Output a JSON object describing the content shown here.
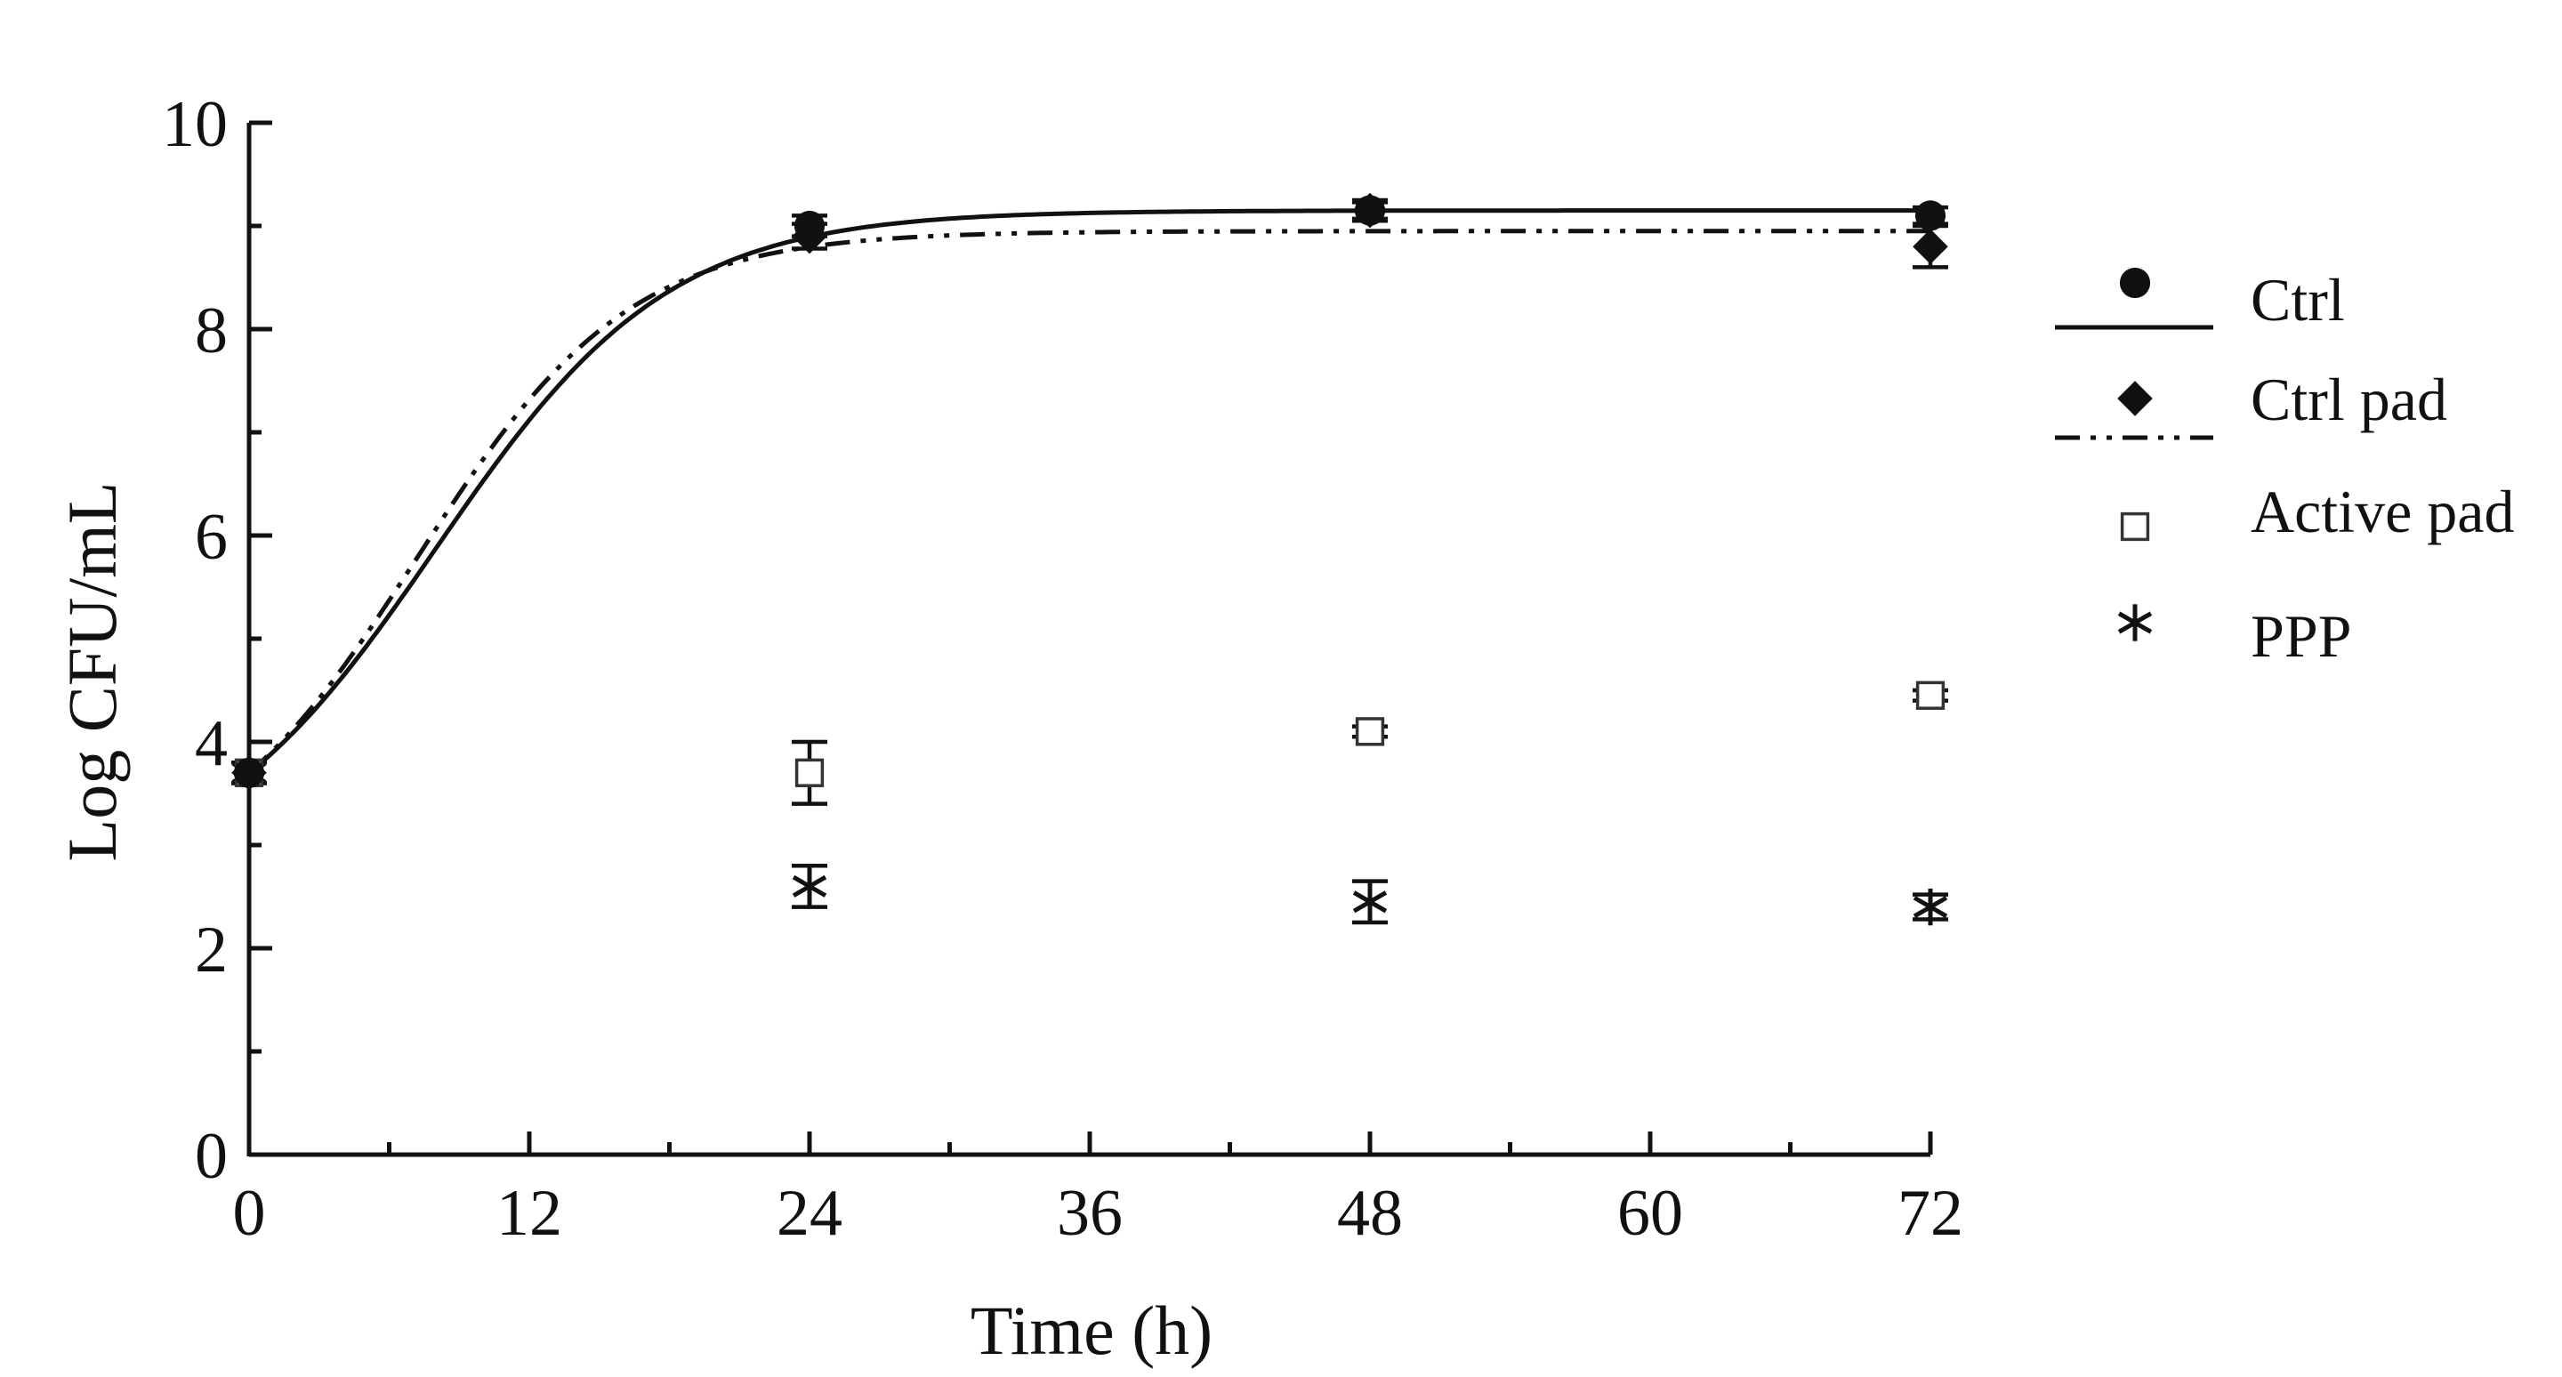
{
  "chart_data": {
    "type": "scatter",
    "title": "",
    "xlabel": "Time (h)",
    "ylabel": "Log CFU/mL",
    "xlim": [
      0,
      72
    ],
    "ylim": [
      0,
      10
    ],
    "xticks": [
      0,
      12,
      24,
      36,
      48,
      60,
      72
    ],
    "yticks": [
      0,
      2,
      4,
      6,
      8,
      10
    ],
    "grid": false,
    "legend_position": "right",
    "series": [
      {
        "name": "Ctrl",
        "marker": "circle",
        "line": "solid",
        "x": [
          0,
          24,
          48,
          72
        ],
        "y": [
          3.7,
          9.0,
          9.15,
          9.1
        ],
        "yerr": [
          0.1,
          0.1,
          0.1,
          0.08
        ],
        "fit": {
          "y0": 3.7,
          "ymax": 9.15,
          "k": 0.2,
          "t_mid": 8
        }
      },
      {
        "name": "Ctrl pad",
        "marker": "diamond",
        "line": "dash-dot-dot",
        "x": [
          0,
          24,
          48,
          72
        ],
        "y": [
          3.7,
          8.9,
          9.15,
          8.8
        ],
        "yerr": [
          0.1,
          0.12,
          0.08,
          0.2
        ],
        "fit": {
          "y0": 3.7,
          "ymax": 8.95,
          "k": 0.22,
          "t_mid": 7.2
        }
      },
      {
        "name": "Active pad",
        "marker": "open-square",
        "line": "none",
        "x": [
          0,
          24,
          48,
          72
        ],
        "y": [
          3.7,
          3.7,
          4.1,
          4.45
        ],
        "yerr": [
          0.1,
          0.3,
          0.05,
          0.05
        ]
      },
      {
        "name": "PPP",
        "marker": "asterisk",
        "line": "none",
        "x": [
          0,
          24,
          48,
          72
        ],
        "y": [
          3.7,
          2.6,
          2.45,
          2.4
        ],
        "yerr": [
          0.1,
          0.2,
          0.2,
          0.12
        ]
      }
    ]
  }
}
